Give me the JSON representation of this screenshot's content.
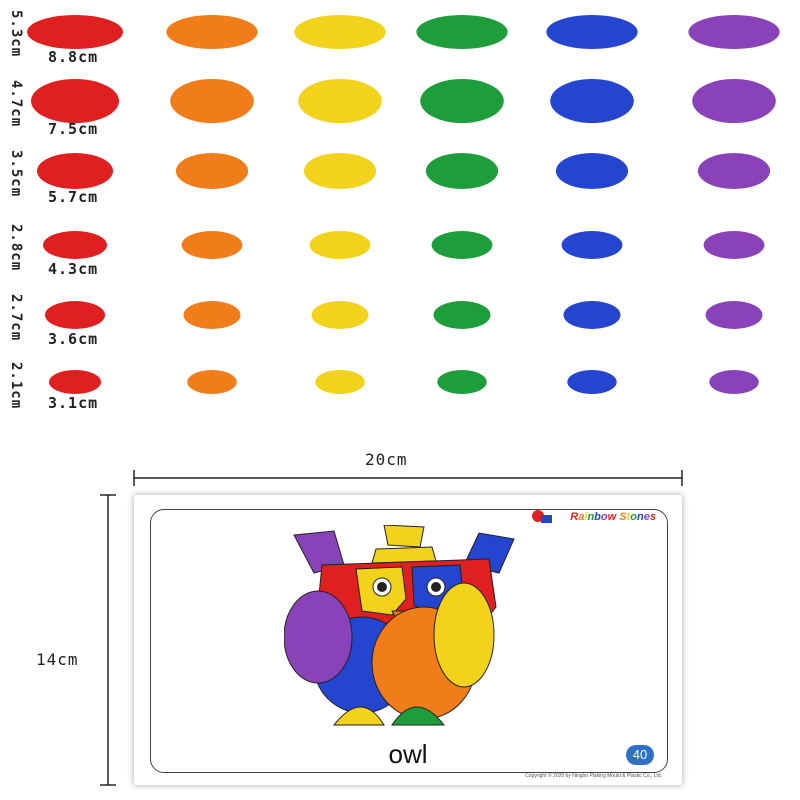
{
  "stone_colors": [
    "#e02020",
    "#f07d1a",
    "#f2d21a",
    "#1e9e3a",
    "#2345d0",
    "#8a42b8"
  ],
  "rows": [
    {
      "width_label": "8.8cm",
      "height_label": "5.3cm"
    },
    {
      "width_label": "7.5cm",
      "height_label": "4.7cm"
    },
    {
      "width_label": "5.7cm",
      "height_label": "3.5cm"
    },
    {
      "width_label": "4.3cm",
      "height_label": "2.8cm"
    },
    {
      "width_label": "3.6cm",
      "height_label": "2.7cm"
    },
    {
      "width_label": "3.1cm",
      "height_label": "2.1cm"
    }
  ],
  "card": {
    "width_label": "20cm",
    "height_label": "14cm",
    "brand": "Rainbow Stones",
    "caption": "owl",
    "page_number": "40",
    "copyright": "Copyright © 2020 by Ningbo Plaking Mould & Plastic Co., Ltd."
  }
}
